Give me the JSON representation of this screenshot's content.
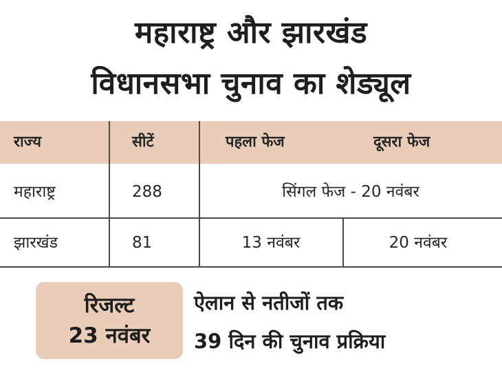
{
  "title": {
    "line1": "महाराष्ट्र और झारखंड",
    "line2": "विधानसभा चुनाव का शेड्यूल"
  },
  "table": {
    "headers": {
      "state": "राज्य",
      "seats": "सीटें",
      "phase1": "पहला फेज",
      "phase2": "दूसरा फेज"
    },
    "rows": [
      {
        "state": "महाराष्ट्र",
        "seats": "288",
        "single_phase": "सिंगल फेज - 20 नवंबर"
      },
      {
        "state": "झारखंड",
        "seats": "81",
        "phase1": "13 नवंबर",
        "phase2": "20 नवंबर"
      }
    ]
  },
  "result": {
    "label": "रिजल्ट",
    "date": "23 नवंबर"
  },
  "note": {
    "line1": "ऐलान से नतीजों तक",
    "line2": "39 दिन की चुनाव प्रक्रिया"
  },
  "colors": {
    "header_bg": "#e9cdb8",
    "text": "#1f1f1f",
    "grid": "#4a4a4a"
  }
}
